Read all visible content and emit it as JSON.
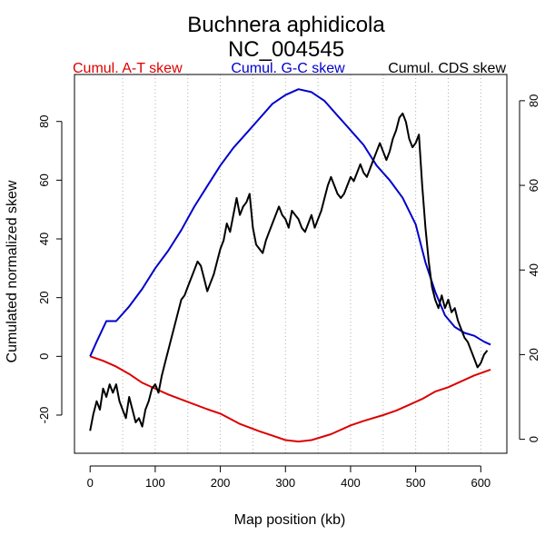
{
  "chart_data": {
    "type": "line",
    "title": "Buchnera aphidicola",
    "subtitle": "NC_004545",
    "xlabel": "Map position (kb)",
    "ylabel": "Cumulated normalized skew",
    "xlim": [
      -24,
      640
    ],
    "ylim": [
      -33,
      96
    ],
    "y2lim": [
      -3.3,
      86.2
    ],
    "xticks": [
      0,
      100,
      200,
      300,
      400,
      500,
      600
    ],
    "yticks": [
      -20,
      0,
      20,
      40,
      60,
      80
    ],
    "y2ticks": [
      0,
      20,
      40,
      60,
      80
    ],
    "vgrid": [
      50,
      100,
      150,
      200,
      250,
      300,
      350,
      400,
      450,
      500,
      550,
      600
    ],
    "grid": "vertical dotted",
    "legend": [
      {
        "label": "Cumul. A-T skew",
        "color": "#dd0000"
      },
      {
        "label": "Cumul. G-C skew",
        "color": "#0000cc"
      },
      {
        "label": "Cumul. CDS skew",
        "color": "#000000"
      }
    ],
    "series": [
      {
        "name": "Cumul. A-T skew",
        "axis": "left",
        "color": "#dd0000",
        "points": [
          [
            0,
            0
          ],
          [
            20,
            -1.5
          ],
          [
            40,
            -3.5
          ],
          [
            60,
            -6
          ],
          [
            80,
            -9
          ],
          [
            100,
            -11
          ],
          [
            120,
            -13
          ],
          [
            150,
            -15.5
          ],
          [
            180,
            -18
          ],
          [
            200,
            -19.5
          ],
          [
            230,
            -23
          ],
          [
            260,
            -25.5
          ],
          [
            280,
            -27
          ],
          [
            300,
            -28.5
          ],
          [
            320,
            -29
          ],
          [
            340,
            -28.5
          ],
          [
            370,
            -26.5
          ],
          [
            400,
            -23.5
          ],
          [
            420,
            -22
          ],
          [
            450,
            -20
          ],
          [
            470,
            -18.5
          ],
          [
            490,
            -16.5
          ],
          [
            510,
            -14.5
          ],
          [
            530,
            -12
          ],
          [
            550,
            -10.5
          ],
          [
            570,
            -8.5
          ],
          [
            590,
            -6.5
          ],
          [
            615,
            -4.5
          ]
        ]
      },
      {
        "name": "Cumul. G-C skew",
        "axis": "left",
        "color": "#0000cc",
        "points": [
          [
            0,
            0
          ],
          [
            10,
            5
          ],
          [
            25,
            12
          ],
          [
            40,
            12
          ],
          [
            60,
            17
          ],
          [
            80,
            23
          ],
          [
            100,
            30
          ],
          [
            120,
            36
          ],
          [
            140,
            43
          ],
          [
            160,
            51
          ],
          [
            180,
            58
          ],
          [
            200,
            65
          ],
          [
            220,
            71
          ],
          [
            240,
            76
          ],
          [
            260,
            81
          ],
          [
            280,
            86
          ],
          [
            300,
            89
          ],
          [
            320,
            91
          ],
          [
            340,
            90
          ],
          [
            360,
            87
          ],
          [
            380,
            82
          ],
          [
            400,
            77
          ],
          [
            420,
            72
          ],
          [
            440,
            65
          ],
          [
            460,
            60
          ],
          [
            480,
            54
          ],
          [
            500,
            45
          ],
          [
            515,
            32
          ],
          [
            530,
            22
          ],
          [
            545,
            14
          ],
          [
            560,
            10
          ],
          [
            575,
            8
          ],
          [
            590,
            7
          ],
          [
            605,
            5
          ],
          [
            615,
            4
          ]
        ]
      },
      {
        "name": "Cumul. CDS skew",
        "axis": "right",
        "color": "#000000",
        "points": [
          [
            0,
            2
          ],
          [
            5,
            6
          ],
          [
            10,
            9
          ],
          [
            15,
            7
          ],
          [
            20,
            12
          ],
          [
            25,
            10
          ],
          [
            30,
            13
          ],
          [
            35,
            11
          ],
          [
            40,
            13
          ],
          [
            45,
            9
          ],
          [
            50,
            7
          ],
          [
            55,
            5
          ],
          [
            60,
            10
          ],
          [
            65,
            7
          ],
          [
            70,
            4
          ],
          [
            75,
            5
          ],
          [
            80,
            3
          ],
          [
            85,
            7
          ],
          [
            90,
            9
          ],
          [
            95,
            12
          ],
          [
            100,
            13
          ],
          [
            105,
            11
          ],
          [
            110,
            15
          ],
          [
            115,
            18
          ],
          [
            120,
            21
          ],
          [
            125,
            24
          ],
          [
            130,
            27
          ],
          [
            135,
            30
          ],
          [
            140,
            33
          ],
          [
            145,
            34
          ],
          [
            150,
            36
          ],
          [
            155,
            38
          ],
          [
            160,
            40
          ],
          [
            165,
            42
          ],
          [
            170,
            41
          ],
          [
            175,
            38
          ],
          [
            180,
            35
          ],
          [
            185,
            37
          ],
          [
            190,
            39
          ],
          [
            195,
            42
          ],
          [
            200,
            45
          ],
          [
            205,
            47
          ],
          [
            210,
            51
          ],
          [
            215,
            49
          ],
          [
            220,
            53
          ],
          [
            225,
            57
          ],
          [
            230,
            53
          ],
          [
            235,
            55
          ],
          [
            240,
            56
          ],
          [
            245,
            58
          ],
          [
            250,
            50
          ],
          [
            255,
            46
          ],
          [
            260,
            45
          ],
          [
            265,
            44
          ],
          [
            270,
            47
          ],
          [
            275,
            49
          ],
          [
            280,
            51
          ],
          [
            285,
            53
          ],
          [
            290,
            55
          ],
          [
            295,
            53
          ],
          [
            300,
            52
          ],
          [
            305,
            50
          ],
          [
            310,
            54
          ],
          [
            315,
            53
          ],
          [
            320,
            52
          ],
          [
            325,
            50
          ],
          [
            330,
            49
          ],
          [
            335,
            51
          ],
          [
            340,
            53
          ],
          [
            345,
            50
          ],
          [
            350,
            52
          ],
          [
            355,
            54
          ],
          [
            360,
            57
          ],
          [
            365,
            60
          ],
          [
            370,
            62
          ],
          [
            375,
            60
          ],
          [
            380,
            58
          ],
          [
            385,
            57
          ],
          [
            390,
            58
          ],
          [
            395,
            60
          ],
          [
            400,
            62
          ],
          [
            405,
            61
          ],
          [
            410,
            63
          ],
          [
            415,
            65
          ],
          [
            420,
            63
          ],
          [
            425,
            62
          ],
          [
            430,
            64
          ],
          [
            435,
            66
          ],
          [
            440,
            68
          ],
          [
            445,
            70
          ],
          [
            450,
            68
          ],
          [
            455,
            66
          ],
          [
            460,
            68
          ],
          [
            465,
            71
          ],
          [
            470,
            73
          ],
          [
            475,
            76
          ],
          [
            480,
            77
          ],
          [
            485,
            75
          ],
          [
            490,
            71
          ],
          [
            495,
            69
          ],
          [
            500,
            70
          ],
          [
            505,
            72
          ],
          [
            510,
            60
          ],
          [
            515,
            50
          ],
          [
            520,
            42
          ],
          [
            525,
            36
          ],
          [
            530,
            33
          ],
          [
            535,
            31
          ],
          [
            540,
            34
          ],
          [
            545,
            31
          ],
          [
            550,
            33
          ],
          [
            555,
            30
          ],
          [
            560,
            31
          ],
          [
            565,
            28
          ],
          [
            570,
            26
          ],
          [
            575,
            24
          ],
          [
            580,
            23
          ],
          [
            585,
            21
          ],
          [
            590,
            19
          ],
          [
            595,
            17
          ],
          [
            600,
            18
          ],
          [
            605,
            20
          ],
          [
            610,
            21
          ]
        ]
      }
    ]
  }
}
